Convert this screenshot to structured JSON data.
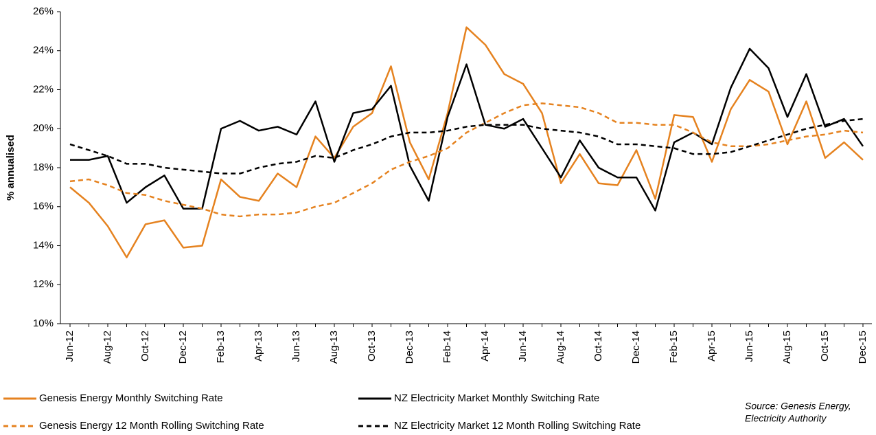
{
  "chart_data": {
    "type": "line",
    "y_label": "% annualised",
    "categories": [
      "Jun-12",
      null,
      "Aug-12",
      null,
      "Oct-12",
      null,
      "Dec-12",
      null,
      "Feb-13",
      null,
      "Apr-13",
      null,
      "Jun-13",
      null,
      "Aug-13",
      null,
      "Oct-13",
      null,
      "Dec-13",
      null,
      "Feb-14",
      null,
      "Apr-14",
      null,
      "Jun-14",
      null,
      "Aug-14",
      null,
      "Oct-14",
      null,
      "Dec-14",
      null,
      "Feb-15",
      null,
      "Apr-15",
      null,
      "Jun-15",
      null,
      "Aug-15",
      null,
      "Oct-15",
      null,
      "Dec-15"
    ],
    "series": [
      {
        "name": "Genesis Energy Monthly Switching Rate",
        "color": "#e5821f",
        "dashed": false,
        "values": [
          17.0,
          16.2,
          15.0,
          13.4,
          15.1,
          15.3,
          13.9,
          14.0,
          17.4,
          16.5,
          16.3,
          17.7,
          17.0,
          19.6,
          18.5,
          20.1,
          20.8,
          23.2,
          19.3,
          17.4,
          20.8,
          25.2,
          24.3,
          22.8,
          22.3,
          20.8,
          17.2,
          18.7,
          17.2,
          17.1,
          18.9,
          16.4,
          20.7,
          20.6,
          18.3,
          21.0,
          22.5,
          21.9,
          19.2,
          21.4,
          18.5,
          19.3,
          18.4
        ]
      },
      {
        "name": "NZ Electricity Market Monthly Switching Rate",
        "color": "#000000",
        "dashed": false,
        "values": [
          18.4,
          18.4,
          18.6,
          16.2,
          17.0,
          17.6,
          15.9,
          15.9,
          20.0,
          20.4,
          19.9,
          20.1,
          19.7,
          21.4,
          18.3,
          20.8,
          21.0,
          22.2,
          18.1,
          16.3,
          20.6,
          23.3,
          20.2,
          20.0,
          20.5,
          19.0,
          17.5,
          19.4,
          18.0,
          17.5,
          17.5,
          15.8,
          19.3,
          19.8,
          19.2,
          22.1,
          24.1,
          23.1,
          20.6,
          22.8,
          20.1,
          20.5,
          19.1
        ]
      },
      {
        "name": "Genesis Energy 12 Month Rolling Switching Rate",
        "color": "#e5821f",
        "dashed": true,
        "values": [
          17.3,
          17.4,
          17.1,
          16.7,
          16.6,
          16.3,
          16.1,
          15.9,
          15.6,
          15.5,
          15.6,
          15.6,
          15.7,
          16.0,
          16.2,
          16.7,
          17.2,
          17.9,
          18.3,
          18.6,
          19.0,
          19.8,
          20.3,
          20.8,
          21.2,
          21.3,
          21.2,
          21.1,
          20.8,
          20.3,
          20.3,
          20.2,
          20.2,
          19.8,
          19.3,
          19.1,
          19.1,
          19.2,
          19.4,
          19.6,
          19.7,
          19.9,
          19.8
        ]
      },
      {
        "name": "NZ Electricity Market 12 Month Rolling Switching Rate",
        "color": "#000000",
        "dashed": true,
        "values": [
          19.2,
          18.9,
          18.6,
          18.2,
          18.2,
          18.0,
          17.9,
          17.8,
          17.7,
          17.7,
          18.0,
          18.2,
          18.3,
          18.6,
          18.5,
          18.9,
          19.2,
          19.6,
          19.8,
          19.8,
          19.9,
          20.1,
          20.2,
          20.2,
          20.2,
          20.0,
          19.9,
          19.8,
          19.6,
          19.2,
          19.2,
          19.1,
          19.0,
          18.7,
          18.7,
          18.8,
          19.1,
          19.4,
          19.7,
          20.0,
          20.2,
          20.4,
          20.5
        ]
      }
    ],
    "ylim": [
      10,
      26
    ],
    "yticks": [
      {
        "value": 10,
        "label": "10%"
      },
      {
        "value": 12,
        "label": "12%"
      },
      {
        "value": 14,
        "label": "14%"
      },
      {
        "value": 16,
        "label": "16%"
      },
      {
        "value": 18,
        "label": "18%"
      },
      {
        "value": 20,
        "label": "20%"
      },
      {
        "value": 22,
        "label": "22%"
      },
      {
        "value": 24,
        "label": "24%"
      },
      {
        "value": 26,
        "label": "26%"
      }
    ],
    "grid": false,
    "legend": "bottom",
    "source": [
      "Source: Genesis Energy,",
      "Electricity Authority"
    ]
  }
}
